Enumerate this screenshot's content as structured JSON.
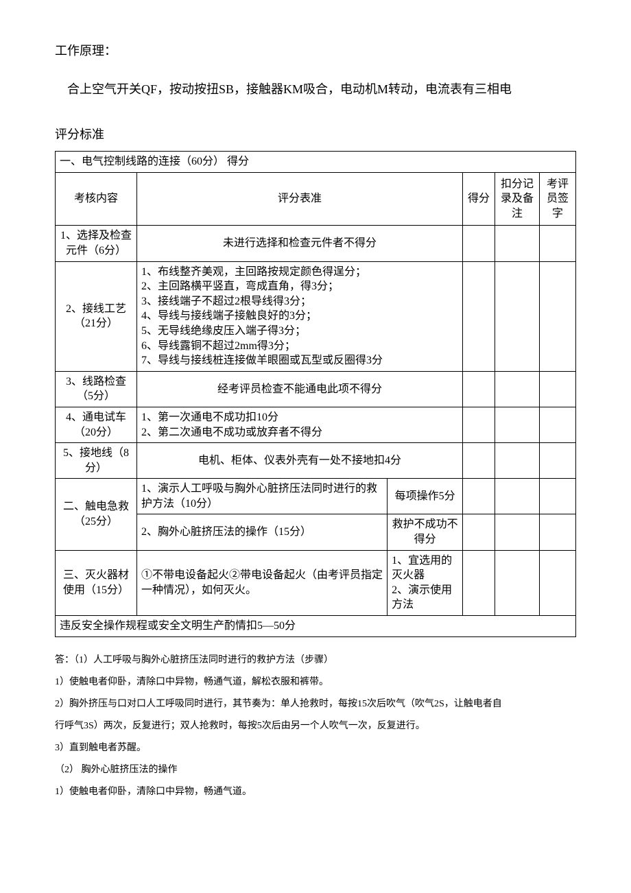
{
  "header": {
    "principleLabel": "工作原理：",
    "principleText": "合上空气开关QF，按动按扭SB，接触器KM吸合，电动机M转动，电流表有三相电",
    "criteriaLabel": "评分标准"
  },
  "table": {
    "sectionTitle": "一、电气控制线路的连接（60分）        得分",
    "headers": {
      "subject": "考核内容",
      "criteria": "评分表准",
      "score": "得分",
      "deductions": "扣分记录及备注",
      "signature": "考评员签字"
    },
    "rows": {
      "r1": {
        "subject": "1、选择及检查元件（6分）",
        "criteria": "未进行选择和检查元件者不得分"
      },
      "r2": {
        "subject": "2、接线工艺（21分）",
        "criteria": "1、布线整齐美观，主回路按规定颜色得逞分；\n2、主回路横平竖直，弯成直角，得3分；\n3、接线端子不超过2根导线得3分；\n4、导线与接线端子接触良好的3分；\n5、无导线绝缘皮压入端子得3分；\n6、导线露铜不超过2mm得3分；\n7、导线与接线桩连接做羊眼圈或瓦型或反圈得3分"
      },
      "r3": {
        "subject": "3、线路检查（5分）",
        "criteria": "经考评员检查不能通电此项不得分"
      },
      "r4": {
        "subject": "4、通电试车（20分）",
        "criteria": "1、第一次通电不成功扣10分\n2、第二次通电不成功或放弃者不得分"
      },
      "r5": {
        "subject": "5、接地线（8分）",
        "criteria": "电机、柜体、仪表外壳有一处不接地扣4分"
      },
      "r6": {
        "subject": "二、触电急救（25分）",
        "sub1": "1、演示人工呼吸与胸外心脏挤压法同时进行的救护方法（10分）",
        "sub1r": "每项操作5分",
        "sub2": "2、胸外心脏挤压法的操作（15分）",
        "sub2r": "救护不成功不得分"
      },
      "r7": {
        "subject": "三、灭火器材使用（15分）",
        "mid": "①不带电设备起火②带电设备起火（由考评员指定一种情况），如何灭火。",
        "right": "1、宜选用的灭火器\n2、演示使用方法"
      },
      "violation": "违反安全操作规程或安全文明生产酌情扣5—50分"
    }
  },
  "answers": {
    "a0": "答：（1）人工呼吸与胸外心脏挤压法同时进行的救护方法（步骤）",
    "a1": "1）使触电者仰卧，清除口中异物，畅通气道，解松衣服和裤带。",
    "a2": "2）胸外挤压与口对口人工呼吸同时进行，其节奏为：单人抢救时，每按15次后吹气（吹气2S，让触电者自",
    "a3": "行呼气3S）两次，反复进行；双人抢救时，每按5次后由另一个人吹气一次，反复进行。",
    "a4": "3）直到触电者苏醒。",
    "a5": "（2）    胸外心脏挤压法的操作",
    "a6": "1）使触电者仰卧，清除口中异物，畅通气道。"
  }
}
